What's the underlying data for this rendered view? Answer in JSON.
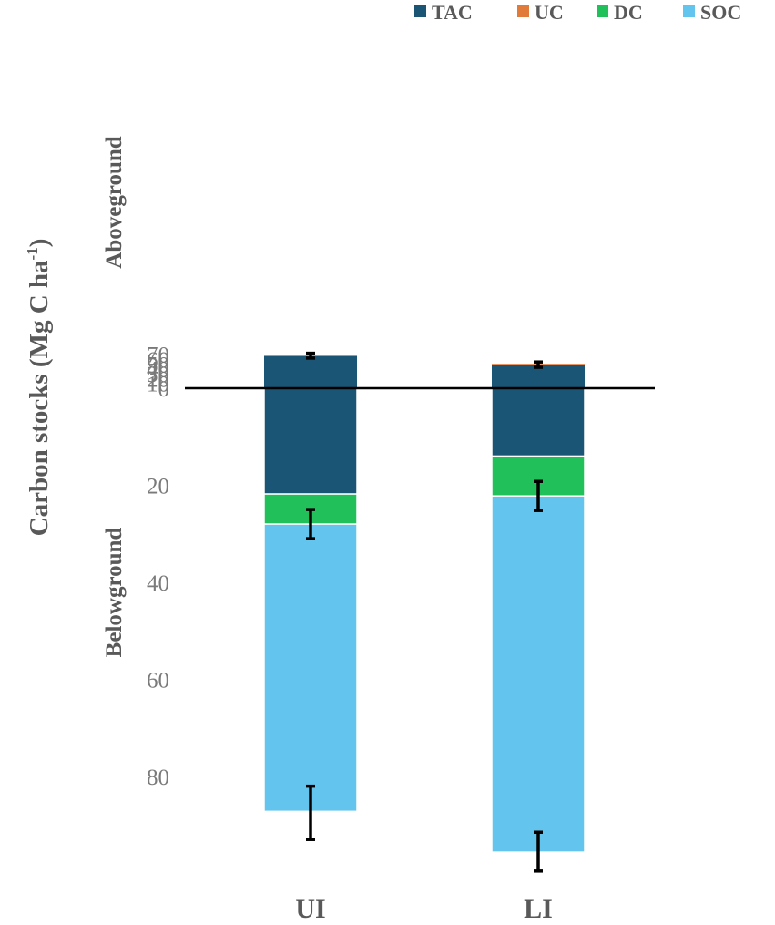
{
  "chart_data": {
    "type": "bar",
    "stacked": true,
    "diverging": true,
    "categories": [
      "UI",
      "LI"
    ],
    "ylabel": "Carbon stocks (Mg C ha",
    "ylabel_superscript": "-1",
    "ylabel_close": ")",
    "section_labels": {
      "above": "Aboveground",
      "below": "Belowground"
    },
    "above_ticks": [
      "0",
      "10",
      "20",
      "30",
      "40",
      "50",
      "60",
      "70"
    ],
    "below_ticks": [
      "20",
      "40",
      "60",
      "80"
    ],
    "above_range": [
      0,
      70
    ],
    "below_range": [
      0,
      100
    ],
    "legend_position": "top-right",
    "series": [
      {
        "name": "TAC",
        "color": "#1b5575",
        "above": [
          66.5,
          48.0
        ],
        "below": [
          21.8,
          14.0
        ]
      },
      {
        "name": "UC",
        "color": "#e07b39",
        "above": [
          0.3,
          2.2
        ],
        "below": [
          0,
          0
        ]
      },
      {
        "name": "DC",
        "color": "#21c05a",
        "above": [
          0,
          0
        ],
        "below": [
          6.2,
          8.2
        ]
      },
      {
        "name": "SOC",
        "color": "#63c5ed",
        "above": [
          0,
          0
        ],
        "below": [
          59.2,
          73.4
        ]
      }
    ],
    "error_bars": [
      {
        "category": "UI",
        "side": "above",
        "center": 67.0,
        "plus": 5.0,
        "minus": 5.0
      },
      {
        "category": "LI",
        "side": "above",
        "center": 50.5,
        "plus": 3.5,
        "minus": 7.5
      },
      {
        "category": "UI",
        "side": "below",
        "center": 28.0,
        "plus": 3.0,
        "minus": 3.0
      },
      {
        "category": "LI",
        "side": "below",
        "center": 22.2,
        "plus": 3.0,
        "minus": 3.0
      },
      {
        "category": "UI",
        "side": "below",
        "center": 87.5,
        "plus": 5.5,
        "minus": 5.5
      },
      {
        "category": "LI",
        "side": "below",
        "center": 95.5,
        "plus": 4.0,
        "minus": 4.0
      }
    ]
  }
}
